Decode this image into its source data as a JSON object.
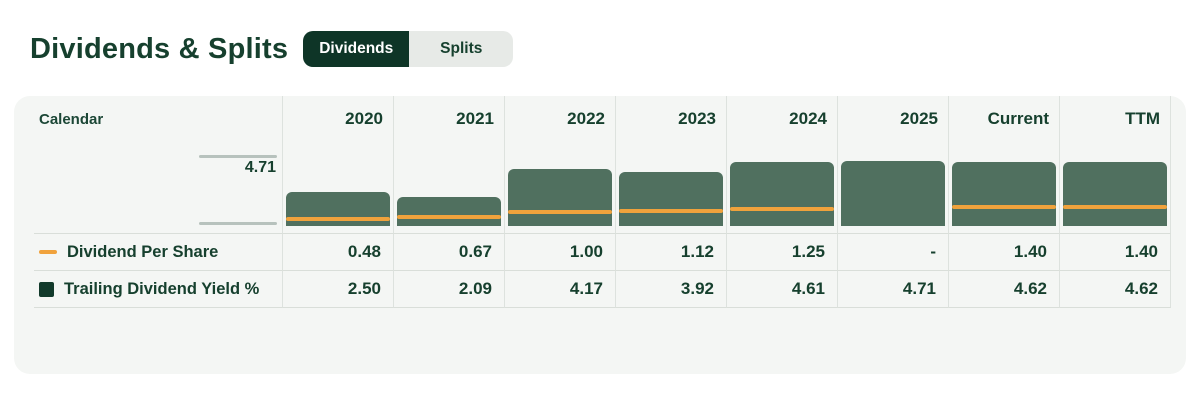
{
  "header": {
    "title": "Dividends & Splits",
    "tabs": [
      {
        "label": "Dividends",
        "active": true
      },
      {
        "label": "Splits",
        "active": false
      }
    ]
  },
  "table": {
    "corner_label": "Calendar",
    "columns": [
      "2020",
      "2021",
      "2022",
      "2023",
      "2024",
      "2025",
      "Current",
      "TTM"
    ],
    "axis_label": "4.71",
    "rows": [
      {
        "label": "Dividend Per Share",
        "legend": "orange-dash",
        "values": [
          "0.48",
          "0.67",
          "1.00",
          "1.12",
          "1.25",
          "-",
          "1.40",
          "1.40"
        ]
      },
      {
        "label": "Trailing Dividend Yield %",
        "legend": "green-square",
        "values": [
          "2.50",
          "2.09",
          "4.17",
          "3.92",
          "4.61",
          "4.71",
          "4.62",
          "4.62"
        ]
      }
    ]
  },
  "chart_data": {
    "type": "bar",
    "title": "Dividends & Splits",
    "categories": [
      "2020",
      "2021",
      "2022",
      "2023",
      "2024",
      "2025",
      "Current",
      "TTM"
    ],
    "series": [
      {
        "name": "Trailing Dividend Yield %",
        "type": "bar",
        "color": "#50705f",
        "values": [
          2.5,
          2.09,
          4.17,
          3.92,
          4.61,
          4.71,
          4.62,
          4.62
        ]
      },
      {
        "name": "Dividend Per Share",
        "type": "line",
        "color": "#f0a23c",
        "values": [
          0.48,
          0.67,
          1.0,
          1.12,
          1.25,
          null,
          1.4,
          1.4
        ]
      }
    ],
    "ylim": [
      0,
      4.71
    ],
    "y_tick_labels": [
      "4.71"
    ],
    "xlabel": "Calendar",
    "ylabel": "",
    "grid": "column-separators-only",
    "legend_position": "left-of-table-rows"
  },
  "colors": {
    "accent_dark_green": "#0e3527",
    "text_green": "#16402e",
    "bar_green": "#50705f",
    "line_orange": "#f0a23c",
    "card_bg": "#f4f6f4",
    "grid_line": "#dde2de",
    "tick_gray": "#b7c2bd",
    "inactive_tab_bg": "#e7eae7"
  }
}
